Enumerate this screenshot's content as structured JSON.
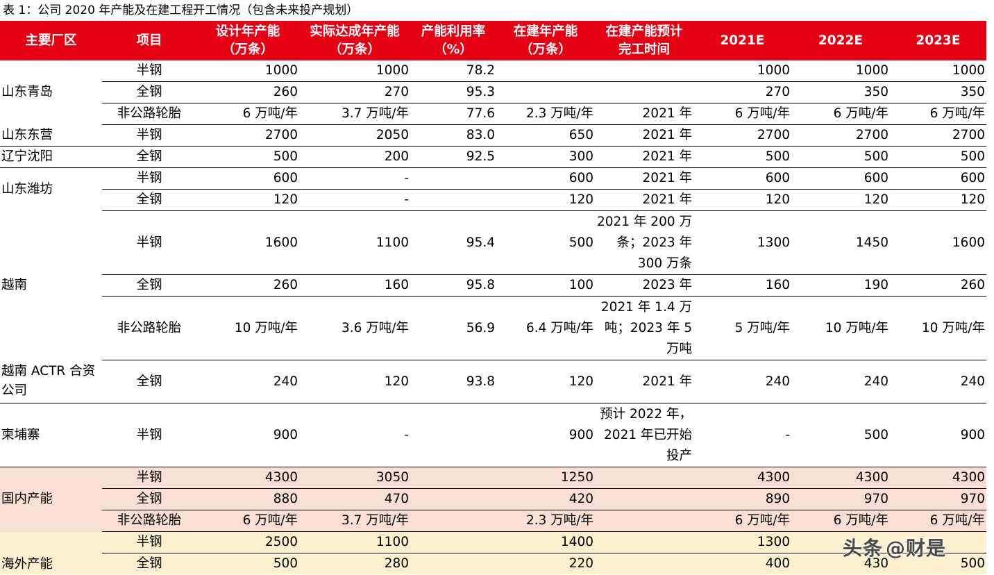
{
  "caption": "表 1：公司 2020 年产能及在建工程开工情况（包含未来投产规划）",
  "headers": {
    "region": "主要厂区",
    "item": "项目",
    "design": [
      "设计年产能",
      "（万条）"
    ],
    "actual": [
      "实际达成年产能",
      "（万条）"
    ],
    "util": [
      "产能利用率",
      "（%）"
    ],
    "building": [
      "在建年产能",
      "（万条）"
    ],
    "complete": [
      "在建产能预计",
      "完工时间"
    ],
    "y2021": "2021E",
    "y2022": "2022E",
    "y2023": "2023E"
  },
  "groups": {
    "qingdao": {
      "region": "山东青岛",
      "rows": [
        {
          "item": "半钢",
          "design": "1000",
          "actual": "1000",
          "util": "78.2",
          "building": "",
          "complete": "",
          "y2021": "1000",
          "y2022": "1000",
          "y2023": "1000"
        },
        {
          "item": "全钢",
          "design": "260",
          "actual": "270",
          "util": "95.3",
          "building": "",
          "complete": "",
          "y2021": "270",
          "y2022": "350",
          "y2023": "350"
        },
        {
          "item": "非公路轮胎",
          "design": "6 万吨/年",
          "actual": "3.7 万吨/年",
          "util": "77.6",
          "building": "2.3 万吨/年",
          "complete": "2021 年",
          "y2021": "6 万吨/年",
          "y2022": "6 万吨/年",
          "y2023": "6 万吨/年"
        }
      ]
    },
    "dongying": {
      "region": "山东东营",
      "rows": [
        {
          "item": "半钢",
          "design": "2700",
          "actual": "2050",
          "util": "83.0",
          "building": "650",
          "complete": "2021 年",
          "y2021": "2700",
          "y2022": "2700",
          "y2023": "2700"
        }
      ]
    },
    "shenyang": {
      "region": "辽宁沈阳",
      "rows": [
        {
          "item": "全钢",
          "design": "500",
          "actual": "200",
          "util": "92.5",
          "building": "300",
          "complete": "2021 年",
          "y2021": "500",
          "y2022": "500",
          "y2023": "500"
        }
      ]
    },
    "weifang": {
      "region": "山东潍坊",
      "rows": [
        {
          "item": "半钢",
          "design": "600",
          "actual": "-",
          "util": "",
          "building": "600",
          "complete": "2021 年",
          "y2021": "600",
          "y2022": "600",
          "y2023": "600"
        },
        {
          "item": "全钢",
          "design": "120",
          "actual": "-",
          "util": "",
          "building": "120",
          "complete": "2021 年",
          "y2021": "120",
          "y2022": "120",
          "y2023": "120"
        }
      ]
    },
    "vietnam": {
      "region": "越南",
      "rows": [
        {
          "item": "半钢",
          "design": "1600",
          "actual": "1100",
          "util": "95.4",
          "building": "500",
          "complete": "2021 年 200 万条；2023 年 300 万条",
          "y2021": "1300",
          "y2022": "1450",
          "y2023": "1600"
        },
        {
          "item": "全钢",
          "design": "260",
          "actual": "160",
          "util": "95.8",
          "building": "100",
          "complete": "2023 年",
          "y2021": "160",
          "y2022": "190",
          "y2023": "260"
        },
        {
          "item": "非公路轮胎",
          "design": "10 万吨/年",
          "actual": "3.6 万吨/年",
          "util": "56.9",
          "building": "6.4 万吨/年",
          "complete": "2021 年 1.4 万吨；2023 年 5 万吨",
          "y2021": "5 万吨/年",
          "y2022": "10 万吨/年",
          "y2023": "10 万吨/年"
        }
      ]
    },
    "actr": {
      "region": "越南 ACTR 合资公司",
      "rows": [
        {
          "item": "全钢",
          "design": "240",
          "actual": "120",
          "util": "93.8",
          "building": "120",
          "complete": "2021 年",
          "y2021": "240",
          "y2022": "240",
          "y2023": "240"
        }
      ]
    },
    "cambodia": {
      "region": "柬埔寨",
      "rows": [
        {
          "item": "半钢",
          "design": "900",
          "actual": "-",
          "util": "",
          "building": "900",
          "complete": "预计 2022 年，2021 年已开始投产",
          "y2021": "-",
          "y2022": "500",
          "y2023": "900"
        }
      ]
    },
    "domestic": {
      "region": "国内产能",
      "rows": [
        {
          "item": "半钢",
          "design": "4300",
          "actual": "3050",
          "util": "",
          "building": "1250",
          "complete": "",
          "y2021": "4300",
          "y2022": "4300",
          "y2023": "4300"
        },
        {
          "item": "全钢",
          "design": "880",
          "actual": "470",
          "util": "",
          "building": "420",
          "complete": "",
          "y2021": "890",
          "y2022": "970",
          "y2023": "970"
        },
        {
          "item": "非公路轮胎",
          "design": "6 万吨/年",
          "actual": "3.7 万吨/年",
          "util": "",
          "building": "2.3 万吨/年",
          "complete": "",
          "y2021": "6 万吨/年",
          "y2022": "6 万吨/年",
          "y2023": "6 万吨/年"
        }
      ]
    },
    "overseas": {
      "region": "海外产能",
      "rows": [
        {
          "item": "半钢",
          "design": "2500",
          "actual": "1100",
          "util": "",
          "building": "1400",
          "complete": "",
          "y2021": "1300",
          "y2022": "",
          "y2023": ""
        },
        {
          "item": "全钢",
          "design": "500",
          "actual": "280",
          "util": "",
          "building": "220",
          "complete": "",
          "y2021": "400",
          "y2022": "430",
          "y2023": "500"
        }
      ]
    }
  },
  "watermark": {
    "text": "头条",
    "handle": "@财是"
  },
  "colors": {
    "header_bg": "#e60013",
    "domestic_bg": "#fbdfd4",
    "overseas_bg": "#fdf0cf"
  }
}
